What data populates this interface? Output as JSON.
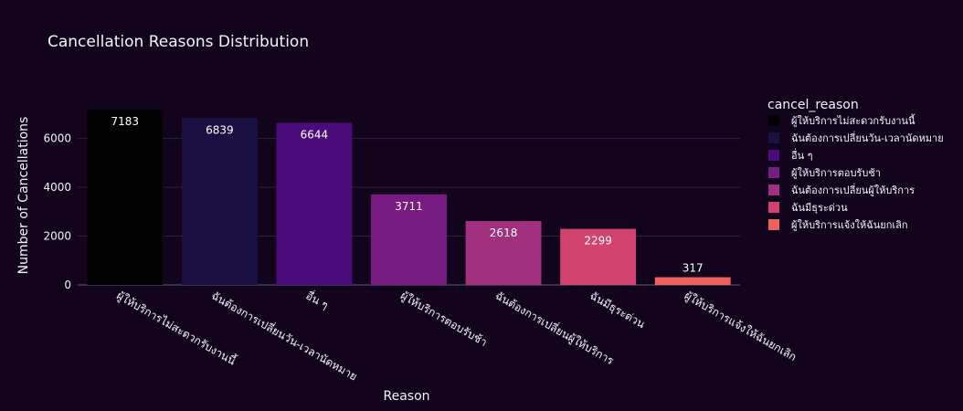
{
  "chart_data": {
    "type": "bar",
    "title": "Cancellation Reasons Distribution",
    "xlabel": "Reason",
    "ylabel": "Number of Cancellations",
    "ylim": [
      0,
      7560
    ],
    "yticks": [
      0,
      2000,
      4000,
      6000
    ],
    "grid": true,
    "legend_title": "cancel_reason",
    "legend_position": "right",
    "categories": [
      "ผู้ให้บริการไม่สะดวกรับงานนี้",
      "ฉันต้องการเปลี่ยนวัน-เวลานัดหมาย",
      "อื่น ๆ",
      "ผู้ให้บริการตอบรับช้า",
      "ฉันต้องการเปลี่ยนผู้ให้บริการ",
      "ฉันมีธุระด่วน",
      "ผู้ให้บริการแจ้งให้ฉันยกเลิก"
    ],
    "values": [
      7183,
      6839,
      6644,
      3711,
      2618,
      2299,
      317
    ],
    "colors": [
      "#030303",
      "#1b1042",
      "#4b0c7b",
      "#781c81",
      "#a1307e",
      "#d1426f",
      "#f0605d"
    ],
    "label_colors": [
      "#ffffff",
      "#ffffff",
      "#ffffff",
      "#ffffff",
      "#ffffff",
      "#ffffff",
      "#ffffff"
    ]
  },
  "colors": {
    "background": "#13041e",
    "grid": "#2c2140",
    "text": "#f2f5fa"
  }
}
